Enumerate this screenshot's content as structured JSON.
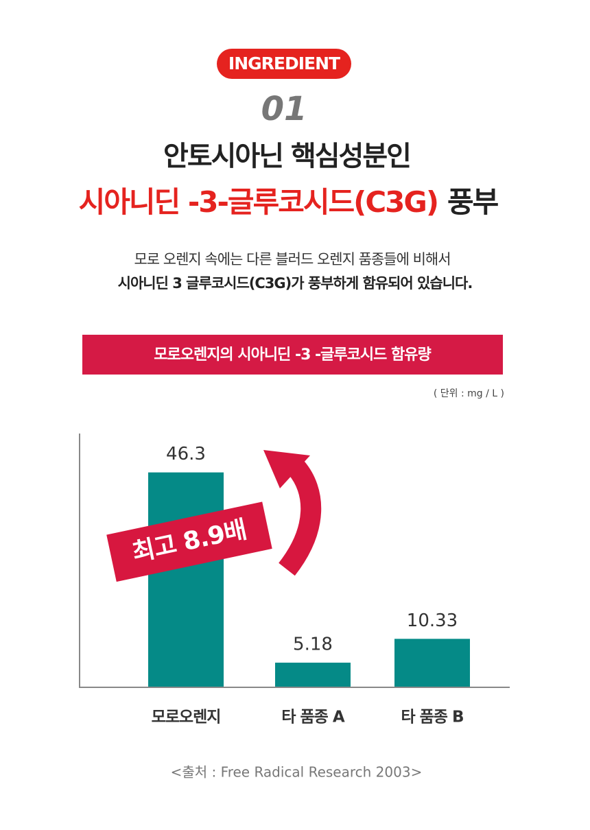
{
  "badge": "INGREDIENT",
  "number": "01",
  "title_line1": "안토시아닌 핵심성분인",
  "title_line2_red": "시아니딘 -3-글루코시드(C3G)",
  "title_line2_black": "풍부",
  "description": [
    "모로 오렌지 속에는 다른 블러드 오렌지 품종들에 비해서",
    "시아니딘 3 글루코시드(C3G)가 풍부하게 함유되어 있습니다."
  ],
  "chart_data": {
    "type": "bar",
    "title": "모로오렌지의 시아니딘 -3 -글루코시드 함유량",
    "unit_label": "( 단위 : mg / L )",
    "categories": [
      "모로오렌지",
      "타 품종 A",
      "타 품종 B"
    ],
    "values": [
      46.3,
      5.18,
      10.33
    ],
    "color": "#058a87",
    "ylim": [
      0,
      55
    ],
    "annotation": "최고 8.9배",
    "source": "<출처 : Free Radical Research 2003>"
  }
}
